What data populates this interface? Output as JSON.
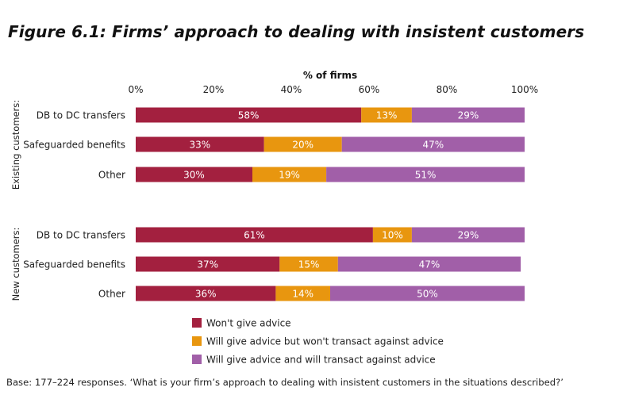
{
  "figure": {
    "title": "Figure 6.1: Firms’ approach to dealing with insistent customers",
    "base_note": "Base: 177–224 responses. ‘What is your firm’s approach to dealing with insistent customers in the situations described?’"
  },
  "chart_data": {
    "type": "bar",
    "orientation": "horizontal",
    "stacked": true,
    "xlabel": "% of firms",
    "xlim": [
      0,
      100
    ],
    "x_ticks": [
      "0%",
      "20%",
      "40%",
      "60%",
      "80%",
      "100%"
    ],
    "axis_position": "top",
    "grid": false,
    "legend_position": "bottom",
    "groups": [
      {
        "label": "Existing customers:",
        "categories": [
          "DB to DC transfers",
          "Safeguarded benefits",
          "Other"
        ]
      },
      {
        "label": "New customers:",
        "categories": [
          "DB to DC transfers",
          "Safeguarded benefits",
          "Other"
        ]
      }
    ],
    "series": [
      {
        "name": "Won't give advice",
        "color": "#a3203f",
        "values": [
          58,
          33,
          30,
          61,
          37,
          36
        ]
      },
      {
        "name": "Will give advice but won't transact against advice",
        "color": "#e8960f",
        "values": [
          13,
          20,
          19,
          10,
          15,
          14
        ]
      },
      {
        "name": "Will give advice and will transact against advice",
        "color": "#a15fa8",
        "values": [
          29,
          47,
          51,
          29,
          47,
          50
        ]
      }
    ],
    "data_label_color": "#ffffff",
    "data_label_suffix": "%"
  }
}
